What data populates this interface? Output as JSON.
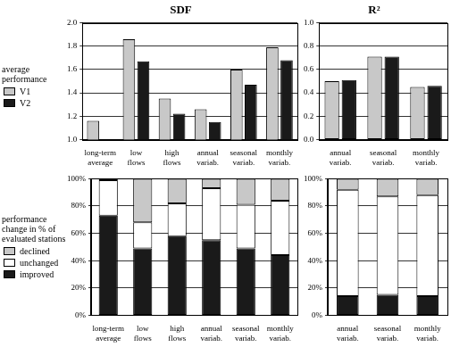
{
  "chart_data": [
    {
      "type": "bar",
      "title": "SDF",
      "categories": [
        "long-term average",
        "low flows",
        "high flows",
        "annual variab.",
        "seasonal variab.",
        "monthly variab."
      ],
      "series": [
        {
          "name": "V1",
          "color": "#c8c8c8",
          "values": [
            1.16,
            1.86,
            1.35,
            1.26,
            1.6,
            1.79
          ]
        },
        {
          "name": "V2",
          "color": "#1a1a1a",
          "values": [
            1.0,
            1.67,
            1.22,
            1.15,
            1.47,
            1.68
          ]
        }
      ],
      "ylim": [
        1,
        2
      ],
      "yticks": [
        {
          "value": 1,
          "label": "1.0"
        },
        {
          "value": 1.2,
          "label": "1.2"
        },
        {
          "value": 1.4,
          "label": "1.4"
        },
        {
          "value": 1.6,
          "label": "1.6"
        },
        {
          "value": 1.8,
          "label": "1.8"
        },
        {
          "value": 2,
          "label": "2.0"
        }
      ],
      "grid": true,
      "legend": "left",
      "legend_title": "average performance"
    },
    {
      "type": "bar",
      "title": "R²",
      "categories": [
        "annual variab.",
        "seasonal variab.",
        "monthly variab."
      ],
      "series": [
        {
          "name": "V1",
          "color": "#c8c8c8",
          "values": [
            0.5,
            0.71,
            0.45
          ]
        },
        {
          "name": "V2",
          "color": "#1a1a1a",
          "values": [
            0.51,
            0.71,
            0.46
          ]
        }
      ],
      "ylim": [
        0,
        1
      ],
      "yticks": [
        {
          "value": 0,
          "label": "0.0"
        },
        {
          "value": 0.2,
          "label": "0.2"
        },
        {
          "value": 0.4,
          "label": "0.4"
        },
        {
          "value": 0.6,
          "label": "0.6"
        },
        {
          "value": 0.8,
          "label": "0.8"
        },
        {
          "value": 1,
          "label": "1.0"
        }
      ],
      "grid": true
    },
    {
      "type": "bar",
      "stacked": true,
      "categories": [
        "long-term average",
        "low flows",
        "high flows",
        "annual variab.",
        "seasonal variab.",
        "monthly variab."
      ],
      "series": [
        {
          "name": "declined",
          "color": "#c8c8c8",
          "values": [
            1,
            32,
            18,
            7,
            19,
            16
          ]
        },
        {
          "name": "unchanged",
          "color": "#ffffff",
          "values": [
            26,
            19,
            24,
            38,
            32,
            40
          ]
        },
        {
          "name": "improved",
          "color": "#1a1a1a",
          "values": [
            73,
            49,
            58,
            55,
            49,
            44
          ]
        }
      ],
      "ylim": [
        0,
        100
      ],
      "yticks": [
        {
          "value": 0,
          "label": "0%"
        },
        {
          "value": 20,
          "label": "20%"
        },
        {
          "value": 40,
          "label": "40%"
        },
        {
          "value": 60,
          "label": "60%"
        },
        {
          "value": 80,
          "label": "80%"
        },
        {
          "value": 100,
          "label": "100%"
        }
      ],
      "grid": true,
      "legend": "left",
      "legend_title": "performance change in % of evaluated stations"
    },
    {
      "type": "bar",
      "stacked": true,
      "categories": [
        "annual variab.",
        "seasonal variab.",
        "monthly variab."
      ],
      "series": [
        {
          "name": "declined",
          "color": "#c8c8c8",
          "values": [
            8,
            13,
            12
          ]
        },
        {
          "name": "unchanged",
          "color": "#ffffff",
          "values": [
            78,
            72,
            74
          ]
        },
        {
          "name": "improved",
          "color": "#1a1a1a",
          "values": [
            14,
            15,
            14
          ]
        }
      ],
      "ylim": [
        0,
        100
      ],
      "yticks": [
        {
          "value": 0,
          "label": "0%"
        },
        {
          "value": 20,
          "label": "20%"
        },
        {
          "value": 40,
          "label": "40%"
        },
        {
          "value": 60,
          "label": "60%"
        },
        {
          "value": 80,
          "label": "80%"
        },
        {
          "value": 100,
          "label": "100%"
        }
      ],
      "grid": true
    }
  ]
}
